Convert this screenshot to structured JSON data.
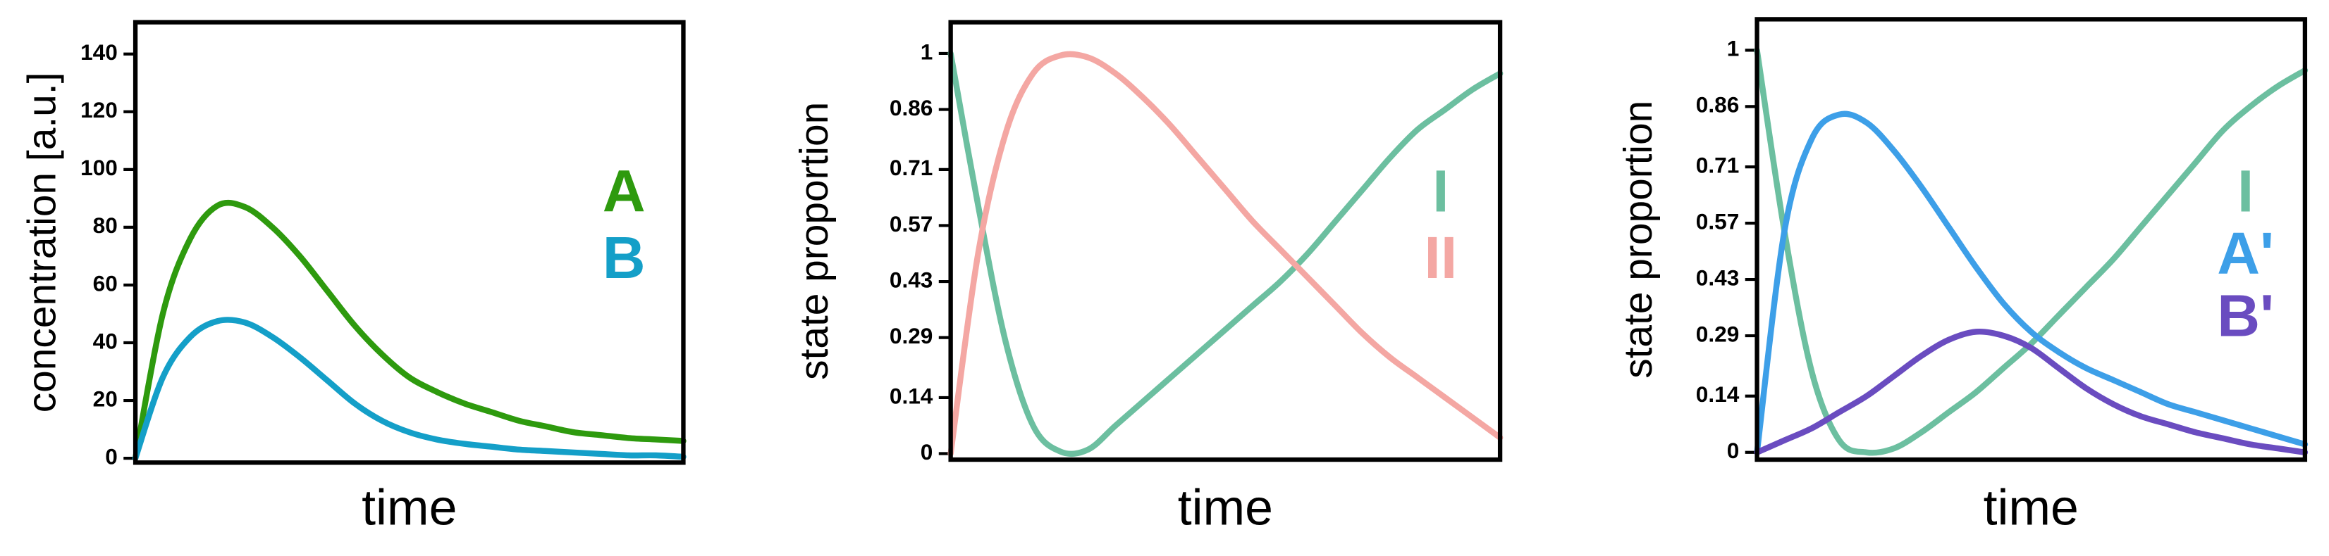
{
  "chart_data": [
    {
      "type": "line",
      "xlabel": "time",
      "ylabel": "concentration [a.u.]",
      "x": [
        0,
        1,
        2,
        3,
        4,
        5,
        6,
        7,
        8,
        9,
        10,
        11,
        12,
        13,
        14,
        15,
        16,
        17,
        18,
        19,
        20
      ],
      "xlim": [
        0,
        20
      ],
      "ylim": [
        -1.5,
        151
      ],
      "yticks": [
        0,
        20,
        40,
        60,
        80,
        100,
        120,
        140
      ],
      "series": [
        {
          "name": "A",
          "color": "#2e9a0e",
          "values": [
            0,
            50,
            76,
            87.5,
            87,
            80,
            70,
            58,
            46,
            36,
            28,
            23,
            19,
            16,
            13,
            11,
            9,
            8,
            7,
            6.5,
            6
          ]
        },
        {
          "name": "B",
          "color": "#149fc8",
          "values": [
            0,
            28,
            42,
            47.5,
            47,
            42,
            35,
            27,
            19,
            13,
            9,
            6.5,
            5,
            4,
            3,
            2.5,
            2,
            1.5,
            1,
            1,
            0.5
          ]
        }
      ]
    },
    {
      "type": "line",
      "xlabel": "time",
      "ylabel": "state proportion",
      "x": [
        0,
        1,
        2,
        3,
        4,
        5,
        6,
        7,
        8,
        9,
        10,
        11,
        12,
        13,
        14,
        15,
        16,
        17,
        18,
        19,
        20
      ],
      "xlim": [
        0,
        20
      ],
      "ylim": [
        -0.015,
        1.078
      ],
      "yticks": [
        0,
        0.14,
        0.29,
        0.43,
        0.57,
        0.71,
        0.86,
        1
      ],
      "series": [
        {
          "name": "I",
          "color": "#6cbfa0",
          "values": [
            1,
            0.62,
            0.28,
            0.07,
            0.005,
            0.01,
            0.07,
            0.13,
            0.19,
            0.25,
            0.31,
            0.37,
            0.43,
            0.5,
            0.58,
            0.66,
            0.74,
            0.81,
            0.86,
            0.91,
            0.95
          ]
        },
        {
          "name": "II",
          "color": "#f4a7a3",
          "values": [
            0,
            0.5,
            0.8,
            0.95,
            0.995,
            0.99,
            0.95,
            0.89,
            0.82,
            0.74,
            0.66,
            0.58,
            0.51,
            0.44,
            0.37,
            0.3,
            0.24,
            0.19,
            0.14,
            0.09,
            0.04
          ]
        }
      ]
    },
    {
      "type": "line",
      "xlabel": "time",
      "ylabel": "state proportion",
      "x": [
        0,
        1,
        2,
        3,
        4,
        5,
        6,
        7,
        8,
        9,
        10,
        11,
        12,
        13,
        14,
        15,
        16,
        17,
        18,
        19,
        20
      ],
      "xlim": [
        0,
        20
      ],
      "ylim": [
        -0.018,
        1.077
      ],
      "yticks": [
        0,
        0.14,
        0.29,
        0.43,
        0.57,
        0.71,
        0.86,
        1
      ],
      "series": [
        {
          "name": "I",
          "color": "#6cbfa0",
          "values": [
            1,
            0.55,
            0.2,
            0.03,
            0,
            0.01,
            0.05,
            0.1,
            0.15,
            0.21,
            0.27,
            0.34,
            0.41,
            0.48,
            0.56,
            0.64,
            0.72,
            0.8,
            0.86,
            0.91,
            0.95
          ]
        },
        {
          "name": "A'",
          "color": "#3d9fe8",
          "values": [
            0,
            0.55,
            0.78,
            0.84,
            0.82,
            0.75,
            0.66,
            0.56,
            0.46,
            0.37,
            0.3,
            0.25,
            0.21,
            0.18,
            0.15,
            0.12,
            0.1,
            0.08,
            0.06,
            0.04,
            0.02
          ]
        },
        {
          "name": "B'",
          "color": "#6a4cc0",
          "values": [
            0,
            0.03,
            0.06,
            0.1,
            0.14,
            0.19,
            0.24,
            0.28,
            0.3,
            0.29,
            0.26,
            0.21,
            0.16,
            0.12,
            0.09,
            0.07,
            0.05,
            0.035,
            0.02,
            0.01,
            0
          ]
        }
      ]
    }
  ]
}
